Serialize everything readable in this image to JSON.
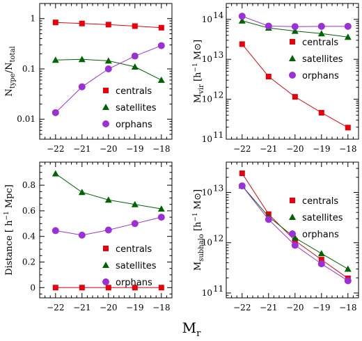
{
  "xlabel": "M_r",
  "chart_data": [
    {
      "type": "line",
      "ylabel": "N_type/N_total",
      "yscale": "log",
      "ylim": [
        0.004,
        2
      ],
      "yticks": [
        0.01,
        0.1,
        1
      ],
      "ytick_labels": [
        "0.01",
        "0.1",
        "1"
      ],
      "x": [
        -22,
        -21,
        -20,
        -19,
        -18
      ],
      "xlim": [
        -22.6,
        -17.6
      ],
      "xtick_labels": [
        "−22",
        "−21",
        "−20",
        "−19",
        "−18"
      ],
      "legend_position": "lower-center",
      "series": [
        {
          "name": "centrals",
          "color": "#e8000b",
          "marker": "square",
          "values": [
            0.84,
            0.8,
            0.76,
            0.71,
            0.66
          ]
        },
        {
          "name": "satellites",
          "color": "#006400",
          "marker": "triangle",
          "values": [
            0.15,
            0.155,
            0.145,
            0.11,
            0.06
          ]
        },
        {
          "name": "orphans",
          "color": "#9b30d9",
          "marker": "circle",
          "values": [
            0.0135,
            0.044,
            0.1,
            0.18,
            0.29
          ]
        }
      ]
    },
    {
      "type": "line",
      "ylabel": "M_vir [h⁻¹ M⊙]",
      "yscale": "log",
      "ylim": [
        100000000000.0,
        250000000000000.0
      ],
      "yticks": [
        100000000000.0,
        1000000000000.0,
        10000000000000.0,
        100000000000000.0
      ],
      "ytick_labels": [
        "10",
        "10",
        "10",
        "10"
      ],
      "ytick_exponents": [
        "11",
        "12",
        "13",
        "14"
      ],
      "x": [
        -22,
        -21,
        -20,
        -19,
        -18
      ],
      "xlim": [
        -22.6,
        -17.6
      ],
      "xtick_labels": [
        "−22",
        "−21",
        "−20",
        "−19",
        "−18"
      ],
      "legend_position": "upper-right",
      "series": [
        {
          "name": "centrals",
          "color": "#e8000b",
          "marker": "square",
          "values": [
            24000000000000.0,
            3700000000000.0,
            1150000000000.0,
            460000000000.0,
            195000000000.0
          ]
        },
        {
          "name": "satellites",
          "color": "#006400",
          "marker": "triangle",
          "values": [
            92000000000000.0,
            61000000000000.0,
            51000000000000.0,
            44000000000000.0,
            36000000000000.0
          ]
        },
        {
          "name": "orphans",
          "color": "#9b30d9",
          "marker": "circle",
          "values": [
            120000000000000.0,
            68000000000000.0,
            66000000000000.0,
            67000000000000.0,
            67000000000000.0
          ]
        }
      ]
    },
    {
      "type": "line",
      "ylabel": "Distance [ h⁻¹ Mpc]",
      "yscale": "linear",
      "ylim": [
        -0.08,
        0.98
      ],
      "yticks": [
        0,
        0.2,
        0.4,
        0.6,
        0.8
      ],
      "ytick_labels": [
        "0",
        "0.2",
        "0.4",
        "0.6",
        "0.8"
      ],
      "x": [
        -22,
        -21,
        -20,
        -19,
        -18
      ],
      "xlim": [
        -22.6,
        -17.6
      ],
      "xtick_labels": [
        "−22",
        "−21",
        "−20",
        "−19",
        "−18"
      ],
      "legend_position": "lower-right",
      "series": [
        {
          "name": "centrals",
          "color": "#e8000b",
          "marker": "square",
          "values": [
            0,
            0,
            0,
            0,
            0
          ]
        },
        {
          "name": "satellites",
          "color": "#006400",
          "marker": "triangle",
          "values": [
            0.89,
            0.745,
            0.685,
            0.65,
            0.615
          ]
        },
        {
          "name": "orphans",
          "color": "#9b30d9",
          "marker": "circle",
          "values": [
            0.445,
            0.41,
            0.45,
            0.5,
            0.55
          ]
        }
      ]
    },
    {
      "type": "line",
      "ylabel": "M_subhalo [h⁻¹ M⊙]",
      "yscale": "log",
      "ylim": [
        80000000000.0,
        40000000000000.0
      ],
      "yticks": [
        100000000000.0,
        1000000000000.0,
        10000000000000.0
      ],
      "ytick_labels": [
        "10",
        "10",
        "10"
      ],
      "ytick_exponents": [
        "11",
        "12",
        "13"
      ],
      "x": [
        -22,
        -21,
        -20,
        -19,
        -18
      ],
      "xlim": [
        -22.6,
        -17.6
      ],
      "xtick_labels": [
        "−22",
        "−21",
        "−20",
        "−19",
        "−18"
      ],
      "legend_position": "upper-right",
      "series": [
        {
          "name": "centrals",
          "color": "#e8000b",
          "marker": "square",
          "values": [
            24000000000000.0,
            3700000000000.0,
            1100000000000.0,
            460000000000.0,
            195000000000.0
          ]
        },
        {
          "name": "satellites",
          "color": "#006400",
          "marker": "triangle",
          "values": [
            13500000000000.0,
            3300000000000.0,
            1250000000000.0,
            610000000000.0,
            300000000000.0
          ]
        },
        {
          "name": "orphans",
          "color": "#9b30d9",
          "marker": "circle",
          "values": [
            13500000000000.0,
            2900000000000.0,
            890000000000.0,
            380000000000.0,
            175000000000.0
          ]
        }
      ]
    }
  ]
}
